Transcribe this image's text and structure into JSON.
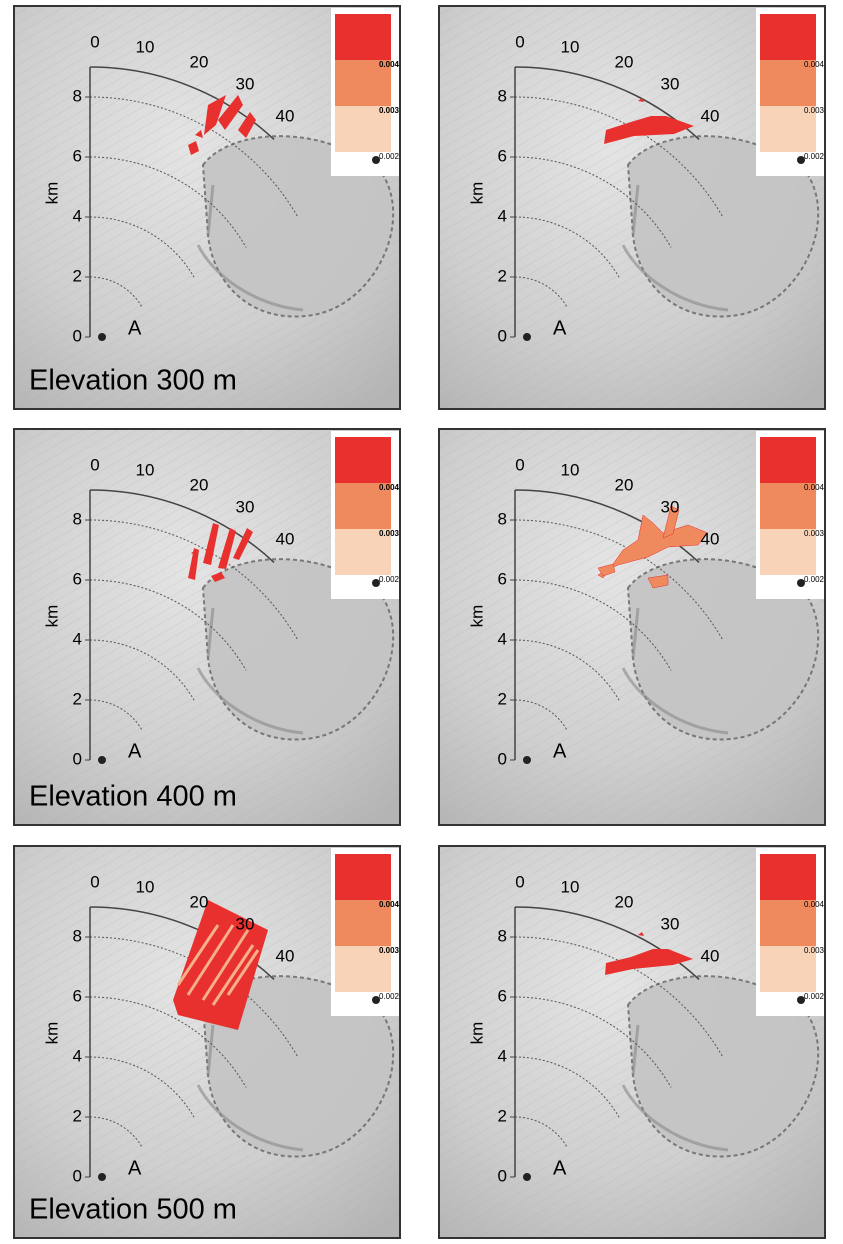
{
  "figure": {
    "range_labels": [
      0,
      10,
      20,
      30,
      40
    ],
    "km_axis": {
      "label": "km",
      "ticks": [
        0,
        2,
        4,
        6,
        8
      ]
    },
    "point_label": "A",
    "legend": [
      0.004,
      0.003,
      0.002
    ],
    "rows": [
      {
        "caption": "Elevation 300 m"
      },
      {
        "caption": "Elevation 400 m"
      },
      {
        "caption": "Elevation 500 m"
      }
    ]
  }
}
